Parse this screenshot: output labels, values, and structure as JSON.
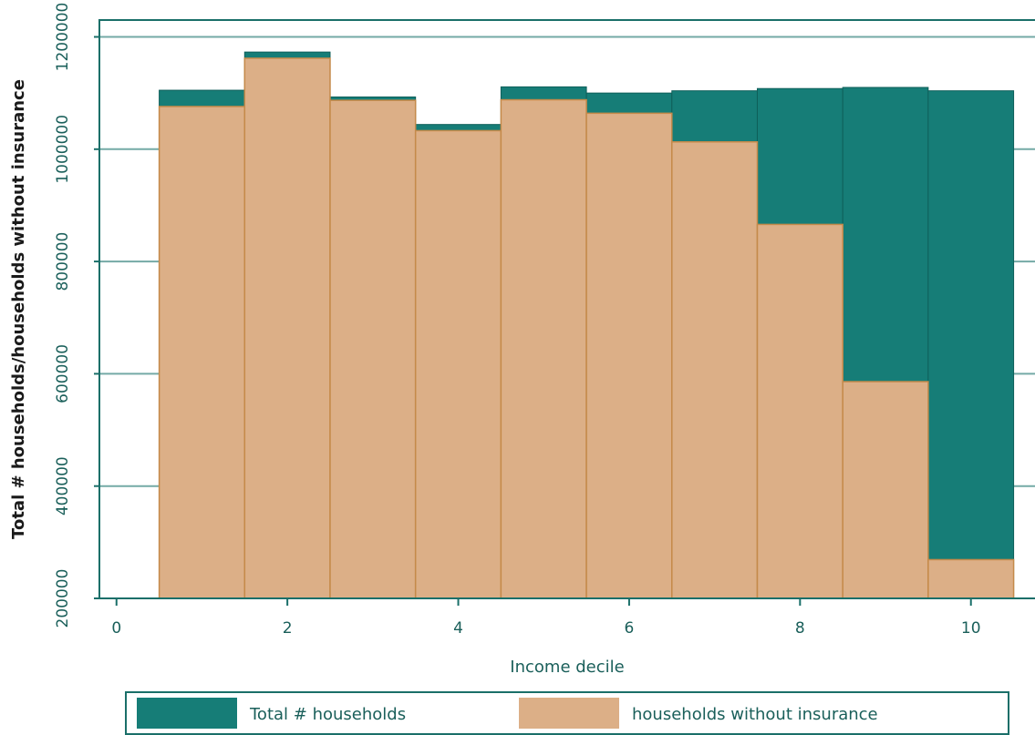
{
  "chart_data": {
    "type": "bar",
    "xlabel": "Income decile",
    "ylabel": "Total # households/households without insurance",
    "xlim": [
      -0.2,
      10.75
    ],
    "ylim": [
      200000,
      1230000
    ],
    "x_ticks": [
      0,
      2,
      4,
      6,
      8,
      10
    ],
    "y_ticks": [
      200000,
      400000,
      600000,
      800000,
      1000000,
      1200000
    ],
    "grid": true,
    "legend_placement": "bottom",
    "categories": [
      1,
      2,
      3,
      4,
      5,
      6,
      7,
      8,
      9,
      10
    ],
    "series": [
      {
        "name": "Total # households",
        "color": "#167d77",
        "values": [
          1105000,
          1173000,
          1093000,
          1044000,
          1111000,
          1100000,
          1104000,
          1108000,
          1110000,
          1104000
        ]
      },
      {
        "name": "households without insurance",
        "color": "#dcaf87",
        "values": [
          1076000,
          1162000,
          1087000,
          1033000,
          1088000,
          1064000,
          1013000,
          866000,
          586000,
          269000
        ]
      }
    ]
  }
}
